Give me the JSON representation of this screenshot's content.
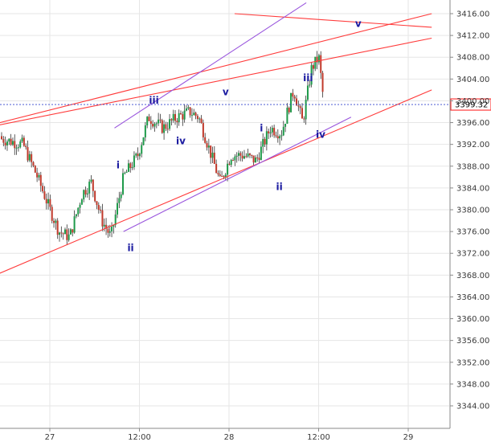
{
  "chart_data": {
    "type": "candlestick",
    "instrument": "",
    "y_axis": {
      "ticks": [
        "3416.00",
        "3412.00",
        "3408.00",
        "3404.00",
        "3400.00",
        "3396.00",
        "3392.00",
        "3388.00",
        "3384.00",
        "3380.00",
        "3376.00",
        "3372.00",
        "3368.00",
        "3364.00",
        "3360.00",
        "3356.00",
        "3352.00",
        "3348.00",
        "3344.00"
      ],
      "range": [
        3340,
        3418
      ]
    },
    "x_axis": {
      "ticks": [
        "27",
        "12:00",
        "28",
        "12:00",
        "29"
      ]
    },
    "last_price": {
      "label": "3399.32",
      "value": 3399.32,
      "color": "#ff3b3b"
    },
    "series_hint": [
      {
        "t": 0,
        "close": 3393
      },
      {
        "t": 0.12,
        "close": 3392
      },
      {
        "t": 0.2,
        "close": 3386
      },
      {
        "t": 0.27,
        "close": 3380
      },
      {
        "t": 0.32,
        "close": 3376
      },
      {
        "t": 0.38,
        "close": 3375
      },
      {
        "t": 0.45,
        "close": 3383
      },
      {
        "t": 0.5,
        "close": 3385
      },
      {
        "t": 0.56,
        "close": 3378
      },
      {
        "t": 0.61,
        "close": 3375
      },
      {
        "t": 0.68,
        "close": 3386
      },
      {
        "t": 0.76,
        "close": 3390
      },
      {
        "t": 0.82,
        "close": 3397
      },
      {
        "t": 0.9,
        "close": 3395
      },
      {
        "t": 0.98,
        "close": 3397
      },
      {
        "t": 1.05,
        "close": 3398
      },
      {
        "t": 1.1,
        "close": 3397
      },
      {
        "t": 1.16,
        "close": 3391
      },
      {
        "t": 1.22,
        "close": 3385
      },
      {
        "t": 1.28,
        "close": 3390
      },
      {
        "t": 1.35,
        "close": 3390
      },
      {
        "t": 1.42,
        "close": 3389
      },
      {
        "t": 1.5,
        "close": 3395
      },
      {
        "t": 1.56,
        "close": 3394
      },
      {
        "t": 1.63,
        "close": 3402
      },
      {
        "t": 1.68,
        "close": 3396
      },
      {
        "t": 1.73,
        "close": 3406
      },
      {
        "t": 1.77,
        "close": 3408
      },
      {
        "t": 1.8,
        "close": 3399
      }
    ],
    "trend_lines": [
      {
        "name": "",
        "color": "#ff3b3b",
        "from": {
          "t": -0.25,
          "price": 3394
        },
        "to": {
          "t": 2.4,
          "price": 3416
        }
      },
      {
        "name": "",
        "color": "#ff3b3b",
        "from": {
          "t": -0.25,
          "price": 3394
        },
        "to": {
          "t": 2.4,
          "price": 3411.5
        }
      },
      {
        "name": "",
        "color": "#ff3b3b",
        "from": {
          "t": -0.25,
          "price": 3365
        },
        "to": {
          "t": 2.4,
          "price": 3402
        }
      },
      {
        "name": "",
        "color": "#ff3b3b",
        "from": {
          "t": 1.3,
          "price": 3416
        },
        "to": {
          "t": 2.4,
          "price": 3413.5
        }
      },
      {
        "name": "",
        "color": "#9955dd",
        "from": {
          "t": 0.63,
          "price": 3395
        },
        "to": {
          "t": 1.7,
          "price": 3418
        }
      },
      {
        "name": "",
        "color": "#9955dd",
        "from": {
          "t": 0.68,
          "price": 3376
        },
        "to": {
          "t": 1.95,
          "price": 3397
        }
      }
    ],
    "wave_labels": [
      {
        "text": "iii",
        "t": 0.85,
        "price": 3399.5
      },
      {
        "text": "v",
        "t": 1.25,
        "price": 3401
      },
      {
        "text": "iv",
        "t": 1.0,
        "price": 3392
      },
      {
        "text": "i",
        "t": 0.65,
        "price": 3387.6
      },
      {
        "text": "ii",
        "t": 0.72,
        "price": 3372.4
      },
      {
        "text": "i",
        "t": 1.45,
        "price": 3394.4
      },
      {
        "text": "iv",
        "t": 1.78,
        "price": 3393.2
      },
      {
        "text": "ii",
        "t": 1.55,
        "price": 3383.6
      },
      {
        "text": "iii",
        "t": 1.71,
        "price": 3403.6
      },
      {
        "text": "v",
        "t": 1.99,
        "price": 3413.6
      }
    ],
    "colors": {
      "up": "#1e9a4a",
      "down": "#c0392b",
      "grid": "#e6e6e6",
      "axis": "#888888",
      "price_line": "#3344cc"
    }
  }
}
